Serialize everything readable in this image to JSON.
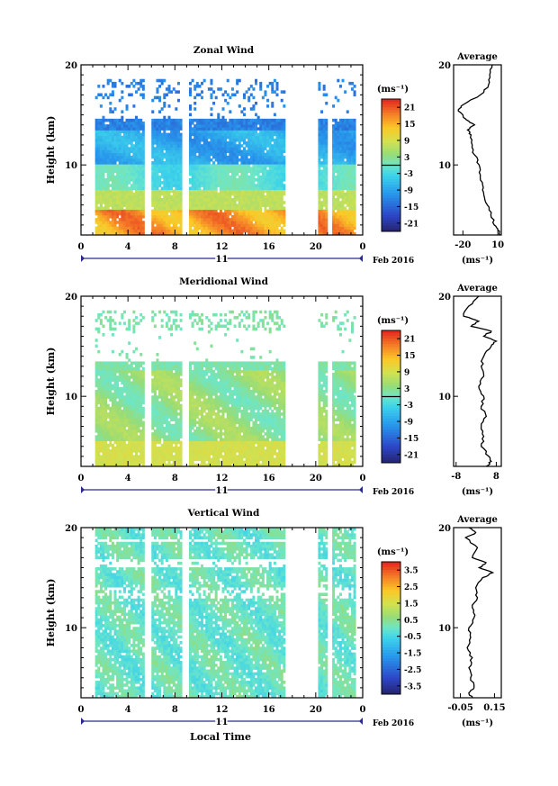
{
  "figure": {
    "xlabel_bottom": "Local Time",
    "date_label": "Feb 2016",
    "day_label": "11"
  },
  "chart_data": [
    {
      "type": "heatmap",
      "title": "Zonal Wind",
      "ylabel": "Height (km)",
      "unit_label": "(ms⁻¹)",
      "xlim": [
        0,
        24
      ],
      "xticks": [
        "0",
        "4",
        "8",
        "12",
        "16",
        "20",
        "0"
      ],
      "ylim": [
        3,
        20
      ],
      "yticks": [
        "20",
        "10"
      ],
      "colorbar_ticks": [
        "21",
        "15",
        "9",
        "3",
        "-3",
        "-9",
        "-15",
        "-21"
      ],
      "colorbar_range": [
        -24,
        24
      ],
      "data_gaps_hours": [
        [
          0,
          1.2
        ],
        [
          5.4,
          6.0
        ],
        [
          8.6,
          9.2
        ],
        [
          17.5,
          20.3
        ],
        [
          21.0,
          21.4
        ],
        [
          23.5,
          24
        ]
      ],
      "profile": {
        "title": "Average",
        "xlabel": "(ms⁻¹)",
        "xticks": [
          "-20",
          "10"
        ],
        "xlim": [
          -28,
          13
        ],
        "y": [
          3,
          3.5,
          4,
          5,
          6,
          7,
          8,
          9,
          10,
          11,
          12,
          13,
          13.5,
          14,
          14.5,
          15,
          15.5,
          16,
          17,
          18,
          19,
          20
        ],
        "x": [
          12,
          10,
          7,
          4,
          1,
          -2,
          -3,
          -5,
          -6,
          -10,
          -12,
          -13,
          -16,
          -10,
          -17,
          -20,
          -24,
          -20,
          -5,
          2,
          3,
          5
        ]
      }
    },
    {
      "type": "heatmap",
      "title": "Meridional Wind",
      "ylabel": "Height (km)",
      "unit_label": "(ms⁻¹)",
      "xlim": [
        0,
        24
      ],
      "xticks": [
        "0",
        "4",
        "8",
        "12",
        "16",
        "20",
        "0"
      ],
      "ylim": [
        3,
        20
      ],
      "yticks": [
        "20",
        "10"
      ],
      "colorbar_ticks": [
        "21",
        "15",
        "9",
        "3",
        "-3",
        "-9",
        "-15",
        "-21"
      ],
      "colorbar_range": [
        -24,
        24
      ],
      "data_gaps_hours": [
        [
          0,
          1.2
        ],
        [
          5.4,
          6.0
        ],
        [
          8.6,
          9.2
        ],
        [
          17.5,
          20.3
        ],
        [
          21.0,
          21.4
        ],
        [
          23.5,
          24
        ]
      ],
      "profile": {
        "title": "Average",
        "xlabel": "(ms⁻¹)",
        "xticks": [
          "-8",
          "8"
        ],
        "xlim": [
          -9,
          10
        ],
        "y": [
          3,
          3.5,
          4,
          5,
          6,
          7,
          8,
          9,
          10,
          11,
          12,
          13,
          14,
          15,
          15.5,
          16,
          16.5,
          17,
          17.5,
          18,
          19,
          20
        ],
        "x": [
          4,
          6,
          5,
          2,
          3,
          2,
          4,
          2,
          3,
          1,
          3,
          2,
          3,
          6,
          8,
          3,
          6,
          -2,
          1,
          -5,
          -3,
          1
        ]
      }
    },
    {
      "type": "heatmap",
      "title": "Vertical Wind",
      "ylabel": "Height (km)",
      "unit_label": "(ms⁻¹)",
      "xlim": [
        0,
        24
      ],
      "xticks": [
        "0",
        "4",
        "8",
        "12",
        "16",
        "20",
        "0"
      ],
      "ylim": [
        3,
        20
      ],
      "yticks": [
        "20",
        "10"
      ],
      "colorbar_ticks": [
        "3.5",
        "2.5",
        "1.5",
        "0.5",
        "-0.5",
        "-1.5",
        "-2.5",
        "-3.5"
      ],
      "colorbar_range": [
        -4,
        4
      ],
      "data_gaps_hours": [
        [
          0,
          1.2
        ],
        [
          5.4,
          6.0
        ],
        [
          8.6,
          9.2
        ],
        [
          17.5,
          20.3
        ],
        [
          21.0,
          21.4
        ],
        [
          23.5,
          24
        ]
      ],
      "profile": {
        "title": "Average",
        "xlabel": "(ms⁻¹)",
        "xticks": [
          "-0.05",
          "0.15"
        ],
        "xlim": [
          -0.09,
          0.19
        ],
        "y": [
          3,
          3.5,
          4,
          5,
          6,
          7,
          8,
          9,
          10,
          11,
          12,
          13,
          14,
          15,
          15.5,
          16,
          16.5,
          17,
          18,
          19,
          19.5,
          20
        ],
        "x": [
          0.02,
          0.0,
          0.03,
          0.01,
          0.0,
          0.02,
          -0.01,
          0.01,
          0.0,
          0.03,
          0.02,
          0.05,
          0.04,
          0.08,
          0.14,
          0.06,
          0.1,
          0.02,
          0.05,
          -0.02,
          0.04,
          0.0
        ]
      }
    }
  ]
}
